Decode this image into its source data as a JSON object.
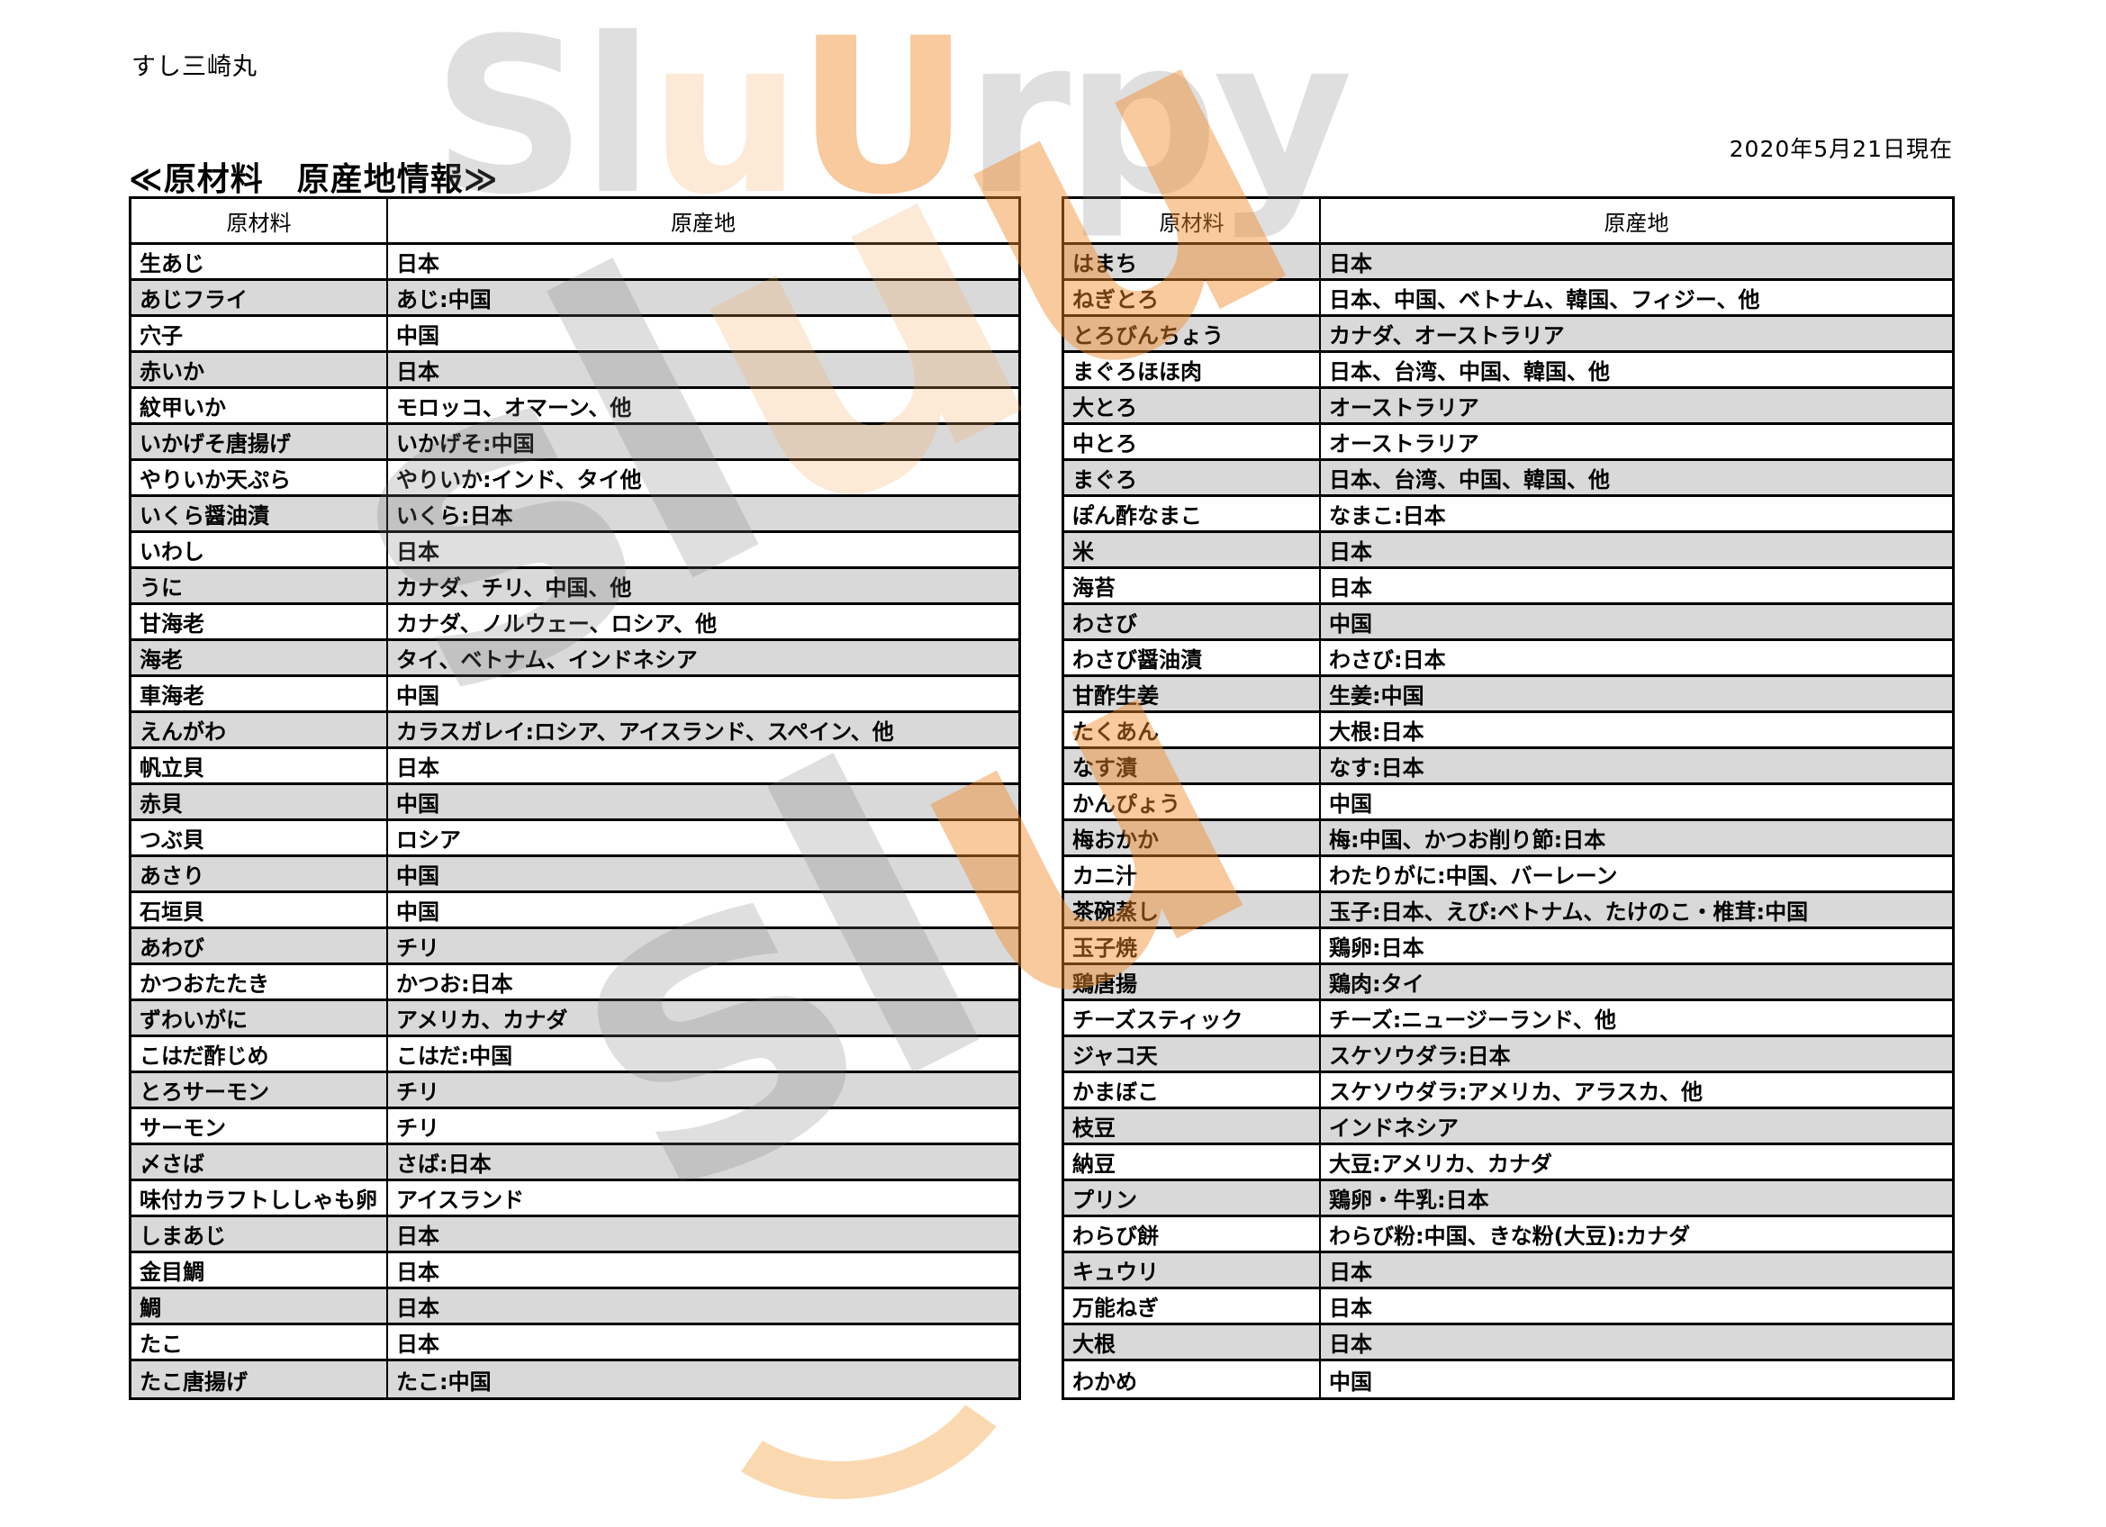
{
  "page": {
    "brand": "すし三崎丸",
    "date": "2020年5月21日現在",
    "title": "≪原材料　原産地情報≫"
  },
  "watermark": {
    "instances": [
      {
        "text": "SluUrpy",
        "orange": {
          "2": "o1",
          "3": "o2"
        }
      },
      {
        "text": "sluu",
        "orange": {
          "2": "o1",
          "3": "o2"
        }
      },
      {
        "text": "slu",
        "orange": {
          "2": "o2"
        }
      }
    ]
  },
  "tables": {
    "columns": {
      "ingredient": "原材料",
      "origin": "原産地"
    },
    "left": {
      "first_row_gray": false,
      "rows": [
        [
          "生あじ",
          "日本"
        ],
        [
          "あじフライ",
          "あじ:中国"
        ],
        [
          "穴子",
          "中国"
        ],
        [
          "赤いか",
          "日本"
        ],
        [
          "紋甲いか",
          "モロッコ、オマーン、他"
        ],
        [
          "いかげそ唐揚げ",
          "いかげそ:中国"
        ],
        [
          "やりいか天ぷら",
          "やりいか:インド、タイ他"
        ],
        [
          "いくら醤油漬",
          "いくら:日本"
        ],
        [
          "いわし",
          "日本"
        ],
        [
          "うに",
          "カナダ、チリ、中国、他"
        ],
        [
          "甘海老",
          "カナダ、ノルウェー、ロシア、他"
        ],
        [
          "海老",
          "タイ、ベトナム、インドネシア"
        ],
        [
          "車海老",
          "中国"
        ],
        [
          "えんがわ",
          "カラスガレイ:ロシア、アイスランド、スペイン、他"
        ],
        [
          "帆立貝",
          "日本"
        ],
        [
          "赤貝",
          "中国"
        ],
        [
          "つぶ貝",
          "ロシア"
        ],
        [
          "あさり",
          "中国"
        ],
        [
          "石垣貝",
          "中国"
        ],
        [
          "あわび",
          "チリ"
        ],
        [
          "かつおたたき",
          "かつお:日本"
        ],
        [
          "ずわいがに",
          "アメリカ、カナダ"
        ],
        [
          "こはだ酢じめ",
          "こはだ:中国"
        ],
        [
          "とろサーモン",
          "チリ"
        ],
        [
          "サーモン",
          "チリ"
        ],
        [
          "〆さば",
          "さば:日本"
        ],
        [
          "味付カラフトししゃも卵",
          "アイスランド"
        ],
        [
          "しまあじ",
          "日本"
        ],
        [
          "金目鯛",
          "日本"
        ],
        [
          "鯛",
          "日本"
        ],
        [
          "たこ",
          "日本"
        ],
        [
          "たこ唐揚げ",
          "たこ:中国"
        ]
      ]
    },
    "right": {
      "first_row_gray": true,
      "rows": [
        [
          "はまち",
          "日本"
        ],
        [
          "ねぎとろ",
          "日本、中国、ベトナム、韓国、フィジー、他"
        ],
        [
          "とろびんちょう",
          "カナダ、オーストラリア"
        ],
        [
          "まぐろほほ肉",
          "日本、台湾、中国、韓国、他"
        ],
        [
          "大とろ",
          "オーストラリア"
        ],
        [
          "中とろ",
          "オーストラリア"
        ],
        [
          "まぐろ",
          "日本、台湾、中国、韓国、他"
        ],
        [
          "ぽん酢なまこ",
          "なまこ:日本"
        ],
        [
          "米",
          "日本"
        ],
        [
          "海苔",
          "日本"
        ],
        [
          "わさび",
          "中国"
        ],
        [
          "わさび醤油漬",
          "わさび:日本"
        ],
        [
          "甘酢生姜",
          "生姜:中国"
        ],
        [
          "たくあん",
          "大根:日本"
        ],
        [
          "なす漬",
          "なす:日本"
        ],
        [
          "かんぴょう",
          "中国"
        ],
        [
          "梅おかか",
          "梅:中国、かつお削り節:日本"
        ],
        [
          "カニ汁",
          "わたりがに:中国、バーレーン"
        ],
        [
          "茶碗蒸し",
          "玉子:日本、えび:ベトナム、たけのこ・椎茸:中国"
        ],
        [
          "玉子焼",
          "鶏卵:日本"
        ],
        [
          "鶏唐揚",
          "鶏肉:タイ"
        ],
        [
          "チーズスティック",
          "チーズ:ニュージーランド、他"
        ],
        [
          "ジャコ天",
          "スケソウダラ:日本"
        ],
        [
          "かまぼこ",
          "スケソウダラ:アメリカ、アラスカ、他"
        ],
        [
          "枝豆",
          "インドネシア"
        ],
        [
          "納豆",
          "大豆:アメリカ、カナダ"
        ],
        [
          "プリン",
          "鶏卵・牛乳:日本"
        ],
        [
          "わらび餅",
          "わらび粉:中国、きな粉(大豆):カナダ"
        ],
        [
          "キュウリ",
          "日本"
        ],
        [
          "万能ねぎ",
          "日本"
        ],
        [
          "大根",
          "日本"
        ],
        [
          "わかめ",
          "中国"
        ]
      ]
    }
  },
  "colors": {
    "row_alt": "#d9d9d9",
    "border": "#000000",
    "watermark_gray": "#dedede",
    "watermark_orange": "#f08a28"
  }
}
